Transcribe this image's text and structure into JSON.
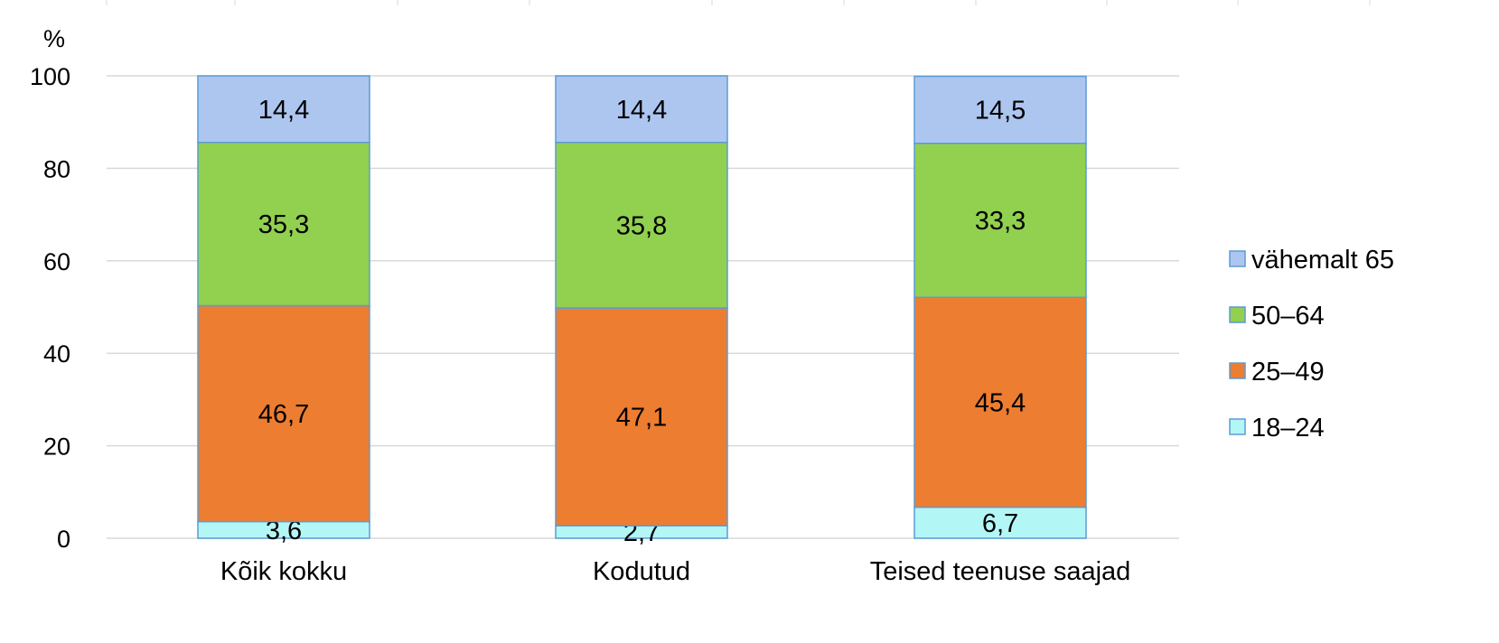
{
  "chart_data": {
    "type": "bar",
    "stacked": true,
    "ylabel": "%",
    "ylim": [
      0,
      100
    ],
    "yticks": [
      "0",
      "20",
      "40",
      "60",
      "80",
      "100"
    ],
    "categories": [
      "Kõik kokku",
      "Kodutud",
      "Teised teenuse saajad"
    ],
    "series": [
      {
        "name": "18–24",
        "color": "#b3f6f6",
        "values": [
          3.6,
          2.7,
          6.7
        ],
        "labels": [
          "3,6",
          "2,7",
          "6,7"
        ]
      },
      {
        "name": "25–49",
        "color": "#ed7d31",
        "values": [
          46.7,
          47.1,
          45.4
        ],
        "labels": [
          "46,7",
          "47,1",
          "45,4"
        ]
      },
      {
        "name": "50–64",
        "color": "#92d050",
        "values": [
          35.3,
          35.8,
          33.3
        ],
        "labels": [
          "35,3",
          "35,8",
          "33,3"
        ]
      },
      {
        "name": "vähemalt 65",
        "color": "#adc6f0",
        "values": [
          14.4,
          14.4,
          14.5
        ],
        "labels": [
          "14,4",
          "14,4",
          "14,5"
        ]
      }
    ],
    "legend_order": [
      "vähemalt 65",
      "50–64",
      "25–49",
      "18–24"
    ],
    "legend_position": "right",
    "grid": true,
    "colors": {
      "gridline": "#d9d9d9",
      "bar_border": "#5b9bd5",
      "text": "#000000"
    }
  }
}
